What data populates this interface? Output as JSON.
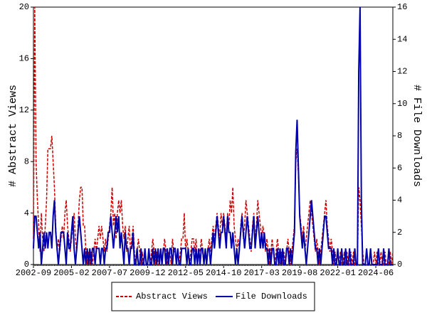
{
  "chart_data": {
    "type": "line",
    "ylabel": "# Abstract Views",
    "y2label": "# File Downloads",
    "ylim": [
      0,
      20
    ],
    "yticks": [
      0,
      4,
      8,
      12,
      16,
      20
    ],
    "y2lim": [
      0,
      16
    ],
    "y2ticks": [
      0,
      2,
      4,
      6,
      8,
      10,
      12,
      14,
      16
    ],
    "legend": "bottom",
    "categories": [
      "2002-09",
      null,
      null,
      null,
      null,
      null,
      null,
      null,
      null,
      null,
      null,
      null,
      null,
      null,
      null,
      null,
      null,
      null,
      null,
      null,
      null,
      null,
      null,
      null,
      null,
      null,
      null,
      null,
      null,
      "2005-02",
      null,
      null,
      null,
      null,
      null,
      null,
      null,
      null,
      null,
      null,
      null,
      null,
      null,
      null,
      null,
      null,
      null,
      null,
      null,
      null,
      null,
      null,
      null,
      null,
      null,
      null,
      null,
      null,
      "2007-07",
      null,
      null,
      null,
      null,
      null,
      null,
      null,
      null,
      null,
      null,
      null,
      null,
      null,
      null,
      null,
      null,
      null,
      null,
      null,
      null,
      null,
      null,
      null,
      null,
      null,
      null,
      null,
      null,
      "2009-12",
      null,
      null,
      null,
      null,
      null,
      null,
      null,
      null,
      null,
      null,
      null,
      null,
      null,
      null,
      null,
      null,
      null,
      null,
      null,
      null,
      null,
      null,
      null,
      null,
      null,
      null,
      null,
      null,
      "2012-05",
      null,
      null,
      null,
      null,
      null,
      null,
      null,
      null,
      null,
      null,
      null,
      null,
      null,
      null,
      null,
      null,
      null,
      null,
      null,
      null,
      null,
      null,
      null,
      null,
      null,
      null,
      null,
      null,
      "2014-10",
      null,
      null,
      null,
      null,
      null,
      null,
      null,
      null,
      null,
      null,
      null,
      null,
      null,
      null,
      null,
      null,
      null,
      null,
      null,
      null,
      null,
      null,
      null,
      null,
      null,
      null,
      null,
      null,
      "2017-03",
      null,
      null,
      null,
      null,
      null,
      null,
      null,
      null,
      null,
      null,
      null,
      null,
      null,
      null,
      null,
      null,
      null,
      null,
      null,
      null,
      null,
      null,
      null,
      null,
      null,
      null,
      null,
      null,
      "2019-08",
      null,
      null,
      null,
      null,
      null,
      null,
      null,
      null,
      null,
      null,
      null,
      null,
      null,
      null,
      null,
      null,
      null,
      null,
      null,
      null,
      null,
      null,
      null,
      null,
      null,
      null,
      null,
      null,
      "2022-01",
      null,
      null,
      null,
      null,
      null,
      null,
      null,
      null,
      null,
      null,
      null,
      null,
      null,
      null,
      null,
      null,
      null,
      null,
      null,
      null,
      null,
      null,
      null,
      null,
      null,
      null,
      null,
      null,
      "2024-06",
      null,
      null,
      null,
      null,
      null,
      null,
      null,
      null,
      null,
      null,
      null,
      null,
      null
    ],
    "series": [
      {
        "name": "Abstract Views",
        "color": "#cc0000",
        "dash": true,
        "values": [
          2,
          20,
          8,
          5,
          3,
          1,
          4,
          2,
          1,
          3,
          5,
          9,
          9,
          9,
          10,
          8,
          6,
          3,
          1,
          2,
          1,
          2,
          3,
          2,
          4,
          5,
          3,
          2,
          1,
          2,
          3,
          4,
          2,
          1,
          3,
          5,
          6,
          6,
          3,
          3,
          1,
          0,
          1,
          0,
          1,
          0,
          1,
          2,
          1,
          2,
          3,
          2,
          3,
          2,
          1,
          2,
          1,
          2,
          3,
          4,
          6,
          3,
          4,
          2,
          4,
          5,
          4,
          5,
          3,
          2,
          3,
          1,
          2,
          3,
          1,
          2,
          3,
          1,
          0,
          1,
          2,
          1,
          0,
          1,
          0,
          1,
          0,
          0,
          1,
          0,
          1,
          2,
          1,
          0,
          1,
          0,
          0,
          1,
          0,
          1,
          2,
          1,
          0,
          1,
          1,
          0,
          2,
          1,
          1,
          0,
          1,
          0,
          1,
          2,
          2,
          4,
          1,
          2,
          1,
          0,
          1,
          2,
          2,
          1,
          2,
          0,
          1,
          1,
          2,
          1,
          0,
          1,
          0,
          1,
          2,
          1,
          2,
          3,
          2,
          3,
          4,
          3,
          2,
          4,
          3,
          4,
          3,
          2,
          4,
          3,
          5,
          4,
          6,
          3,
          2,
          1,
          2,
          1,
          3,
          4,
          2,
          3,
          5,
          4,
          3,
          2,
          1,
          3,
          4,
          2,
          3,
          5,
          4,
          3,
          2,
          3,
          2,
          1,
          2,
          1,
          0,
          1,
          2,
          1,
          0,
          1,
          2,
          1,
          0,
          1,
          0,
          1,
          0,
          1,
          2,
          1,
          0,
          1,
          2,
          3,
          8,
          9,
          7,
          4,
          3,
          2,
          3,
          1,
          2,
          3,
          4,
          5,
          4,
          3,
          2,
          1,
          2,
          1,
          0,
          1,
          2,
          3,
          4,
          5,
          3,
          2,
          1,
          2,
          1,
          0,
          1,
          0,
          1,
          0,
          1,
          0,
          0,
          1,
          0,
          1,
          0,
          0,
          1,
          0,
          1,
          0,
          0,
          0,
          6,
          5,
          3,
          1,
          0,
          0,
          1,
          0,
          0,
          1,
          0,
          0,
          1,
          0,
          1,
          0,
          0,
          1,
          0,
          0,
          1,
          0,
          0,
          0,
          1,
          0,
          1
        ]
      },
      {
        "name": "File Downloads",
        "color": "#0000aa",
        "axis": "y2",
        "values": [
          1,
          3,
          3,
          2,
          1,
          2,
          0,
          1,
          2,
          1,
          2,
          1,
          2,
          2,
          1,
          3,
          4,
          2,
          1,
          0,
          1,
          2,
          2,
          2,
          1,
          0,
          2,
          1,
          1,
          2,
          3,
          1,
          0,
          1,
          2,
          3,
          2,
          1,
          0,
          1,
          0,
          1,
          0,
          1,
          0,
          1,
          1,
          0,
          1,
          1,
          1,
          0,
          1,
          1,
          0,
          1,
          1,
          2,
          2,
          3,
          2,
          1,
          2,
          3,
          2,
          3,
          1,
          2,
          1,
          0,
          2,
          1,
          1,
          0,
          1,
          1,
          2,
          0,
          0,
          1,
          0,
          0,
          1,
          0,
          0,
          1,
          0,
          0,
          1,
          0,
          0,
          1,
          0,
          1,
          0,
          1,
          0,
          1,
          0,
          1,
          1,
          0,
          1,
          0,
          1,
          1,
          0,
          1,
          1,
          0,
          1,
          0,
          0,
          1,
          1,
          1,
          1,
          0,
          1,
          0,
          0,
          1,
          1,
          0,
          1,
          0,
          1,
          0,
          1,
          1,
          0,
          1,
          0,
          1,
          1,
          0,
          1,
          2,
          1,
          2,
          3,
          2,
          1,
          2,
          2,
          3,
          2,
          1,
          3,
          2,
          2,
          1,
          2,
          1,
          0,
          1,
          0,
          1,
          2,
          3,
          2,
          1,
          2,
          3,
          2,
          1,
          1,
          2,
          3,
          1,
          2,
          3,
          2,
          1,
          2,
          1,
          2,
          1,
          1,
          0,
          1,
          0,
          1,
          1,
          0,
          0,
          1,
          0,
          1,
          0,
          1,
          0,
          0,
          1,
          1,
          0,
          1,
          0,
          1,
          2,
          7,
          9,
          6,
          3,
          2,
          1,
          2,
          1,
          0,
          1,
          2,
          3,
          4,
          3,
          2,
          1,
          1,
          0,
          1,
          0,
          1,
          2,
          3,
          3,
          2,
          1,
          1,
          1,
          0,
          1,
          0,
          0,
          1,
          0,
          0,
          1,
          0,
          0,
          1,
          0,
          0,
          1,
          0,
          0,
          0,
          1,
          0,
          0,
          12,
          16,
          4,
          0,
          0,
          0,
          1,
          0,
          0,
          1,
          0,
          0,
          0,
          0,
          0,
          1,
          0,
          0,
          0,
          1,
          0,
          0,
          0,
          1,
          0,
          0,
          0
        ]
      }
    ]
  }
}
